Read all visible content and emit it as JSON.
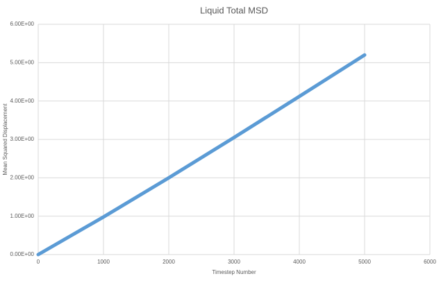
{
  "chart_data": {
    "type": "line",
    "title": "Liquid Total MSD",
    "x_label": "Timestep Number",
    "y_label": "Mean Squared Displacement",
    "x": [
      0,
      1000,
      2000,
      3000,
      4000,
      5000
    ],
    "values": [
      0,
      0.98,
      2.0,
      3.05,
      4.12,
      5.2
    ],
    "color": "#5b9bd5",
    "xlim": [
      0,
      6000
    ],
    "xticks": [
      0,
      1000,
      2000,
      3000,
      4000,
      5000,
      6000
    ],
    "ylim": [
      0,
      6
    ],
    "yticks": [
      {
        "value": 0,
        "label": "0.00E+00"
      },
      {
        "value": 1,
        "label": "1.00E+00"
      },
      {
        "value": 2,
        "label": "2.00E+00"
      },
      {
        "value": 3,
        "label": "3.00E+00"
      },
      {
        "value": 4,
        "label": "4.00E+00"
      },
      {
        "value": 5,
        "label": "5.00E+00"
      },
      {
        "value": 6,
        "label": "6.00E+00"
      }
    ],
    "grid": true
  }
}
